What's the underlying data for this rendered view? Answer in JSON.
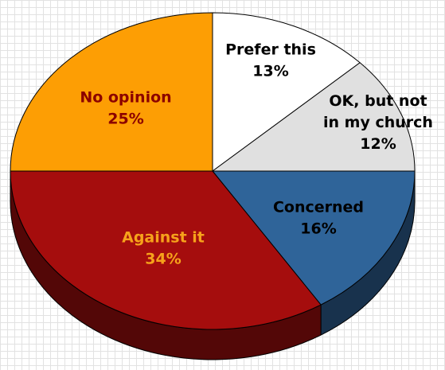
{
  "chart_data": {
    "type": "pie",
    "style": "3d",
    "legend": "none",
    "grid": false,
    "slices": [
      {
        "label": "Prefer this",
        "value_label": "13%",
        "value": 13,
        "color": "#ffffff",
        "text_color": "#000000"
      },
      {
        "label": "OK, but not in my church",
        "label_lines": [
          "OK, but not",
          "in my church"
        ],
        "value_label": "12%",
        "value": 12,
        "color": "#e0e0e0",
        "text_color": "#000000"
      },
      {
        "label": "Concerned",
        "value_label": "16%",
        "value": 16,
        "color": "#2f6499",
        "text_color": "#000000"
      },
      {
        "label": "Against it",
        "value_label": "34%",
        "value": 34,
        "color": "#a50d0d",
        "text_color": "#f6a21b"
      },
      {
        "label": "No opinion",
        "value_label": "25%",
        "value": 25,
        "color": "#fd9e04",
        "text_color": "#8b0000"
      }
    ]
  }
}
